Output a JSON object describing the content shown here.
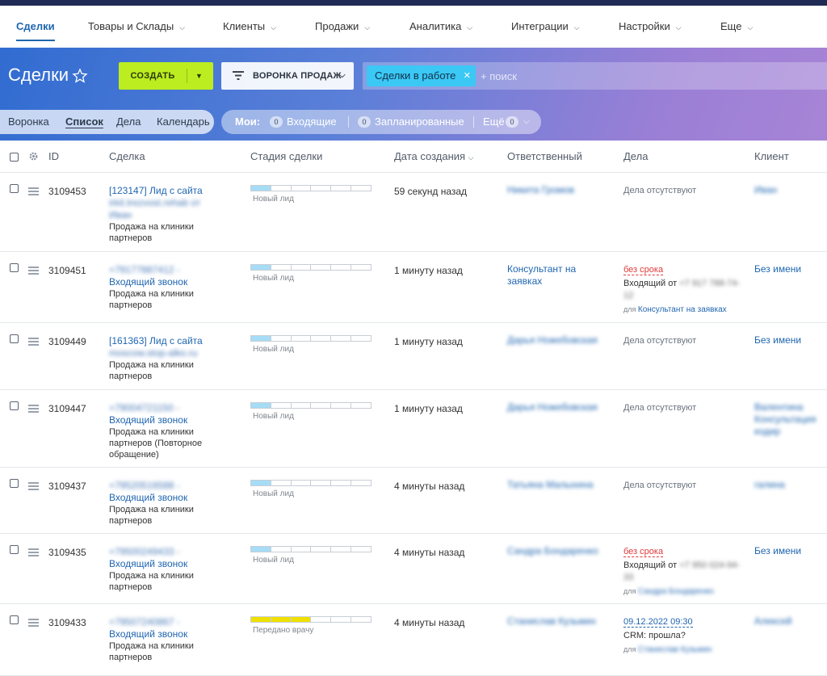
{
  "topnav": {
    "items": [
      {
        "label": "Сделки",
        "has_caret": false
      },
      {
        "label": "Товары и Склады",
        "has_caret": true
      },
      {
        "label": "Клиенты",
        "has_caret": true
      },
      {
        "label": "Продажи",
        "has_caret": true
      },
      {
        "label": "Аналитика",
        "has_caret": true
      },
      {
        "label": "Интеграции",
        "has_caret": true
      },
      {
        "label": "Настройки",
        "has_caret": true
      },
      {
        "label": "Еще",
        "has_caret": true
      }
    ]
  },
  "toolbar": {
    "title": "Сделки",
    "create_label": "СОЗДАТЬ",
    "funnel_label": "ВОРОНКА ПРОДАЖ",
    "filter_chip": "Сделки в работе",
    "search_placeholder": "+ поиск"
  },
  "views": {
    "items": [
      "Воронка",
      "Список",
      "Дела",
      "Календарь"
    ],
    "active": "Список"
  },
  "counters": {
    "mine_label": "Мои:",
    "incoming_count": "0",
    "incoming_label": "Входящие",
    "planned_count": "0",
    "planned_label": "Запланированные",
    "more_label": "Ещё",
    "more_count": "0"
  },
  "table": {
    "headers": {
      "id": "ID",
      "deal": "Сделка",
      "stage": "Стадия сделки",
      "created": "Дата создания",
      "responsible": "Ответственный",
      "activities": "Дела",
      "client": "Клиент"
    },
    "rows": [
      {
        "id": "3109453",
        "title_lines": [
          "[123147] Лид с сайта"
        ],
        "title_blurred": [
          "irkit.trezvost.rehab от",
          "Иван"
        ],
        "sub": [
          "Продажа на клиники",
          "партнеров"
        ],
        "stage": "Новый лид",
        "created": "59 секунд назад",
        "responsible": "Никита Громов",
        "responsible_blurred": true,
        "activity": {
          "type": "none",
          "text": "Дела отсутствуют"
        },
        "client": "Иван",
        "client_blurred": true
      },
      {
        "id": "3109451",
        "title_blurred": [
          "+79177887412 -"
        ],
        "title_lines": [
          "Входящий звонок"
        ],
        "sub": [
          "Продажа на клиники",
          "партнеров"
        ],
        "stage": "Новый лид",
        "created": "1 минуту назад",
        "responsible": "Консультант на заявках",
        "responsible_blurred": false,
        "activity": {
          "type": "overdue",
          "flag": "без срока",
          "text": "Входящий от",
          "blurred": "+7 917 788-74-12",
          "for_label": "для",
          "for_name": "Консультант на заявках"
        },
        "client": "Без имени",
        "client_blurred": false
      },
      {
        "id": "3109449",
        "title_lines": [
          "[161363] Лид с сайта"
        ],
        "title_blurred": [
          "moscow.stop-alko.ru"
        ],
        "sub": [
          "Продажа на клиники",
          "партнеров"
        ],
        "stage": "Новый лид",
        "created": "1 минуту назад",
        "responsible": "Дарья Ножебовская",
        "responsible_blurred": true,
        "activity": {
          "type": "none",
          "text": "Дела отсутствуют"
        },
        "client": "Без имени",
        "client_blurred": false
      },
      {
        "id": "3109447",
        "title_blurred": [
          "+79004721150 -"
        ],
        "title_lines": [
          "Входящий звонок"
        ],
        "sub": [
          "Продажа на клиники",
          "партнеров (Повторное",
          "обращение)"
        ],
        "stage": "Новый лид",
        "created": "1 минуту назад",
        "responsible": "Дарья Ножебовская",
        "responsible_blurred": true,
        "activity": {
          "type": "none",
          "text": "Дела отсутствуют"
        },
        "client": "Валентина Консультация кодир",
        "client_blurred": true
      },
      {
        "id": "3109437",
        "title_blurred": [
          "+79520516588 -"
        ],
        "title_lines": [
          "Входящий звонок"
        ],
        "sub": [
          "Продажа на клиники",
          "партнеров"
        ],
        "stage": "Новый лид",
        "created": "4 минуты назад",
        "responsible": "Татьяна Малыхина",
        "responsible_blurred": true,
        "activity": {
          "type": "none",
          "text": "Дела отсутствуют"
        },
        "client": "галина",
        "client_blurred": true
      },
      {
        "id": "3109435",
        "title_blurred": [
          "+79500249433 -"
        ],
        "title_lines": [
          "Входящий звонок"
        ],
        "sub": [
          "Продажа на клиники",
          "партнеров"
        ],
        "stage": "Новый лид",
        "created": "4 минуты назад",
        "responsible": "Сандра Бондаренко",
        "responsible_blurred": true,
        "activity": {
          "type": "overdue",
          "flag": "без срока",
          "text": "Входящий от",
          "blurred": "+7 950 024-94-33",
          "for_label": "для",
          "for_name": "Сандра Бондаренко",
          "for_blurred": true
        },
        "client": "Без имени",
        "client_blurred": false
      },
      {
        "id": "3109433",
        "title_blurred": [
          "+79507240867 -"
        ],
        "title_lines": [
          "Входящий звонок"
        ],
        "sub": [
          "Продажа на клиники",
          "партнеров"
        ],
        "stage": "Передано врачу",
        "stage_progress": 3,
        "created": "4 минуты назад",
        "responsible": "Станислав Кузьмин",
        "responsible_blurred": true,
        "activity": {
          "type": "dated",
          "flag": "09.12.2022 09:30",
          "text": "CRM: прошла?",
          "for_label": "для",
          "for_name": "Станислав Кузьмин",
          "for_blurred": true
        },
        "client": "Алексей",
        "client_blurred": true
      }
    ]
  },
  "colors": {
    "accent": "#2066b0",
    "create_button": "#bbed21",
    "filter_chip": "#3bc8f5",
    "stage_new": "#a6dcf5",
    "stage_doctor": "#f0e000",
    "overdue": "#e03a3a"
  }
}
